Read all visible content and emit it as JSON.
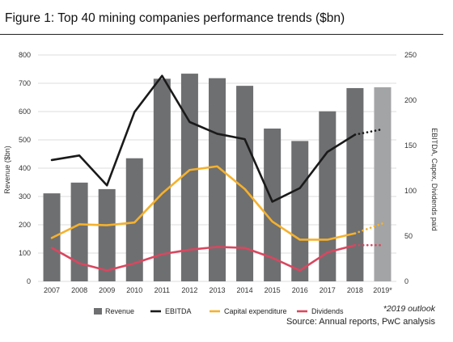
{
  "figure": {
    "title": "Figure 1: Top 40 mining companies performance trends ($bn)",
    "note": "*2019 outlook",
    "source": "Source: Annual reports, PwC analysis"
  },
  "colors": {
    "revenue": "#6e6f71",
    "revenue_forecast": "#a3a4a6",
    "ebitda": "#1a1a1a",
    "capex": "#f5b12d",
    "dividends": "#d9475f",
    "grid": "#dcdcdc"
  },
  "chart_data": {
    "type": "bar",
    "title": "Figure 1: Top 40 mining companies performance trends ($bn)",
    "categories": [
      "2007",
      "2008",
      "2009",
      "2010",
      "2011",
      "2012",
      "2013",
      "2014",
      "2015",
      "2016",
      "2017",
      "2018",
      "2019*"
    ],
    "forecast_index": 12,
    "left_axis": {
      "label": "Revenue ($bn)",
      "ylim": [
        0,
        800
      ],
      "ticks": [
        0,
        100,
        200,
        300,
        400,
        500,
        600,
        700,
        800
      ]
    },
    "right_axis": {
      "label": "EBITDA, Capex, Dividends paid",
      "ylim": [
        0,
        250
      ],
      "ticks": [
        0,
        50,
        100,
        150,
        200,
        250
      ]
    },
    "series": [
      {
        "name": "Revenue",
        "type": "bar",
        "axis": "left",
        "values": [
          311,
          349,
          326,
          435,
          716,
          734,
          718,
          691,
          540,
          496,
          601,
          683,
          686
        ]
      },
      {
        "name": "EBITDA",
        "type": "line",
        "axis": "right",
        "values": [
          134,
          139,
          106,
          187,
          227,
          176,
          163,
          157,
          88,
          103,
          143,
          162,
          168
        ]
      },
      {
        "name": "Capital expenditure",
        "type": "line",
        "axis": "right",
        "values": [
          48,
          63,
          62,
          65,
          97,
          123,
          127,
          102,
          66,
          46,
          46,
          53,
          64
        ]
      },
      {
        "name": "Dividends",
        "type": "line",
        "axis": "right",
        "values": [
          37,
          20,
          12,
          20,
          30,
          35,
          38,
          37,
          26,
          12,
          32,
          40,
          40
        ]
      }
    ],
    "grid": true,
    "legend_position": "bottom"
  }
}
